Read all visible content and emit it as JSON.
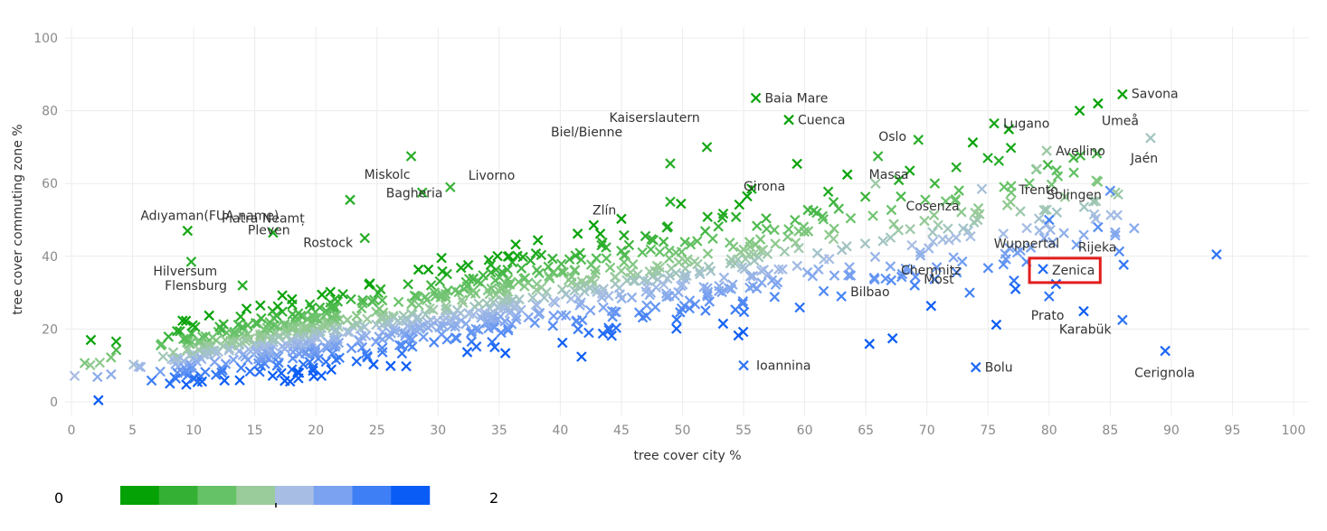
{
  "chart_data": {
    "type": "scatter",
    "title": "",
    "xlabel": "tree cover city %",
    "ylabel": "tree cover commuting zone %",
    "xlim": [
      0,
      101
    ],
    "ylim": [
      -2,
      102
    ],
    "xticks": [
      0,
      5,
      10,
      15,
      20,
      25,
      30,
      35,
      40,
      45,
      50,
      55,
      60,
      65,
      70,
      75,
      80,
      85,
      90,
      95,
      100
    ],
    "yticks": [
      0,
      20,
      40,
      60,
      80,
      100
    ],
    "grid": true,
    "marker": "x",
    "color_legend": {
      "min_label": "0",
      "max_label": "2",
      "swatches": [
        "#05a205",
        "#34b134",
        "#66c266",
        "#9acb9a",
        "#a7bde3",
        "#7aa2f0",
        "#3f7ff5",
        "#0a5cf6"
      ]
    },
    "labeled_points": [
      {
        "name": "Baia Mare",
        "x": 56.0,
        "y": 83.5,
        "c": 0.0
      },
      {
        "name": "Savona",
        "x": 86.0,
        "y": 84.5,
        "c": 0.0
      },
      {
        "name": "Umeå",
        "x": 84.0,
        "y": 82.0,
        "c": 0.0
      },
      {
        "name": "Cuenca",
        "x": 58.7,
        "y": 77.5,
        "c": 0.0
      },
      {
        "name": "Lugano",
        "x": 75.5,
        "y": 76.5,
        "c": 0.1
      },
      {
        "name": "Oslo",
        "x": 69.3,
        "y": 72.0,
        "c": 0.2
      },
      {
        "name": "Jaén",
        "x": 88.3,
        "y": 72.5,
        "c": 1.0
      },
      {
        "name": "Kaiserslautern",
        "x": 52.0,
        "y": 70.0,
        "c": 0.1
      },
      {
        "name": "Avellino",
        "x": 79.8,
        "y": 69.0,
        "c": 0.9
      },
      {
        "name": "Miskolc",
        "x": 27.8,
        "y": 67.5,
        "c": 0.2
      },
      {
        "name": "Massa",
        "x": 66.0,
        "y": 67.5,
        "c": 0.3
      },
      {
        "name": "Biel/Bienne",
        "x": 49.0,
        "y": 65.5,
        "c": 0.2
      },
      {
        "name": "Trento",
        "x": 79.0,
        "y": 64.0,
        "c": 0.9
      },
      {
        "name": "Livorno",
        "x": 31.0,
        "y": 59.0,
        "c": 0.3
      },
      {
        "name": "Girona",
        "x": 65.8,
        "y": 60.0,
        "c": 0.9
      },
      {
        "name": "Bagheria",
        "x": 28.7,
        "y": 57.5,
        "c": 0.2
      },
      {
        "name": "Solingen",
        "x": 85.0,
        "y": 58.0,
        "c": 1.6
      },
      {
        "name": "Zlín",
        "x": 49.0,
        "y": 55.0,
        "c": 0.2
      },
      {
        "name": "Cosenza",
        "x": 74.5,
        "y": 58.5,
        "c": 1.1
      },
      {
        "name": "Piatra Neamț",
        "x": 22.8,
        "y": 55.5,
        "c": 0.2
      },
      {
        "name": "Adıyaman(FUA name)",
        "x": 9.5,
        "y": 47.0,
        "c": 0.1
      },
      {
        "name": "Rostock",
        "x": 24.0,
        "y": 45.0,
        "c": 0.2
      },
      {
        "name": "Hilversum",
        "x": 9.8,
        "y": 38.5,
        "c": 0.2
      },
      {
        "name": "Pleven",
        "x": 16.5,
        "y": 46.5,
        "c": 0.1
      },
      {
        "name": "Rijeka",
        "x": 84.0,
        "y": 48.0,
        "c": 1.6
      },
      {
        "name": "Wuppertal",
        "x": 80.0,
        "y": 50.0,
        "c": 1.7
      },
      {
        "name": "Flensburg",
        "x": 14.0,
        "y": 32.0,
        "c": 0.2
      },
      {
        "name": "Zenica",
        "x": 79.5,
        "y": 36.5,
        "c": 1.9,
        "highlight": true
      },
      {
        "name": "Bilbao",
        "x": 63.0,
        "y": 29.0,
        "c": 1.7
      },
      {
        "name": "Most",
        "x": 69.0,
        "y": 32.0,
        "c": 1.7
      },
      {
        "name": "Chemnitz",
        "x": 73.5,
        "y": 30.0,
        "c": 1.7
      },
      {
        "name": "Prato",
        "x": 80.0,
        "y": 29.0,
        "c": 1.8
      },
      {
        "name": "Karabük",
        "x": 86.0,
        "y": 22.5,
        "c": 1.8
      },
      {
        "name": "Ioannina",
        "x": 55.0,
        "y": 10.0,
        "c": 1.8
      },
      {
        "name": "Bolu",
        "x": 74.0,
        "y": 9.5,
        "c": 1.9
      },
      {
        "name": "Cerignola",
        "x": 89.5,
        "y": 14.0,
        "c": 1.9
      },
      {
        "name": "",
        "x": 93.7,
        "y": 40.5,
        "c": 1.8
      },
      {
        "name": "",
        "x": 82.5,
        "y": 80.0,
        "c": 0.0
      }
    ],
    "cloud": {
      "count": 1050,
      "note": "point cloud of cities; x = tree cover city %, y = tree cover commuting zone %, c = colour-scale value 0-2"
    }
  }
}
